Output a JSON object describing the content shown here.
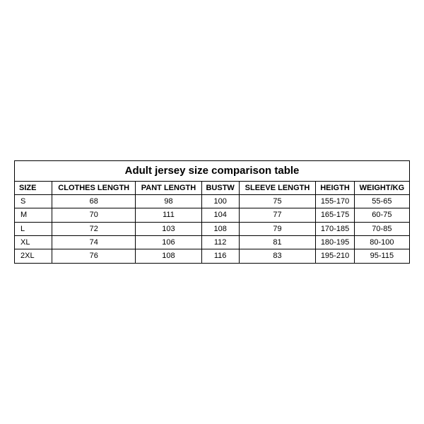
{
  "table": {
    "type": "table",
    "title": "Adult jersey size comparison table",
    "title_fontsize": 15,
    "header_fontsize": 11,
    "cell_fontsize": 11,
    "border_color": "#000000",
    "background_color": "#ffffff",
    "text_color": "#000000",
    "columns": [
      "SIZE",
      "CLOTHES LENGTH",
      "PANT LENGTH",
      "BUSTW",
      "SLEEVE LENGTH",
      "HEIGTH",
      "WEIGHT/KG"
    ],
    "rows": [
      [
        "S",
        "68",
        "98",
        "100",
        "75",
        "155-170",
        "55-65"
      ],
      [
        "M",
        "70",
        "111",
        "104",
        "77",
        "165-175",
        "60-75"
      ],
      [
        "L",
        "72",
        "103",
        "108",
        "79",
        "170-185",
        "70-85"
      ],
      [
        "XL",
        "74",
        "106",
        "112",
        "81",
        "180-195",
        "80-100"
      ],
      [
        "2XL",
        "76",
        "108",
        "116",
        "83",
        "195-210",
        "95-115"
      ]
    ]
  }
}
